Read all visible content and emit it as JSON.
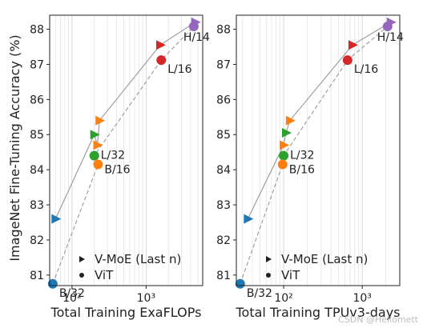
{
  "chart_data": {
    "type": "scatter",
    "ylabel": "ImageNet Fine-Tuning Accuracy (%)",
    "ylim": [
      80.7,
      88.4
    ],
    "yticks": [
      81,
      82,
      83,
      84,
      85,
      86,
      87,
      88
    ],
    "x_scale": "log",
    "legend": {
      "placement": "bottom-center",
      "entries": [
        {
          "label": "V-MoE (Last n)",
          "marker": "triangle-right"
        },
        {
          "label": "ViT",
          "marker": "circle"
        }
      ]
    },
    "colors": {
      "B/32": "#1f77b4",
      "B/16": "#ff7f0e",
      "L/32": "#2ca02c",
      "L/16": "#d62728",
      "H/14": "#9467bd",
      "line": "#999999"
    },
    "panels": [
      {
        "xlabel": "Total Training ExaFLOPs",
        "xlim": [
          50,
          5800
        ],
        "xticks": [
          {
            "value": 100,
            "label": "10²"
          },
          {
            "value": 1000,
            "label": "10³"
          }
        ],
        "vmoe": [
          {
            "x": 60,
            "y": 82.6,
            "color": "#1f77b4"
          },
          {
            "x": 200,
            "y": 85.0,
            "color": "#2ca02c"
          },
          {
            "x": 220,
            "y": 84.7,
            "color": "#ff7f0e"
          },
          {
            "x": 235,
            "y": 85.4,
            "color": "#ff7f0e"
          },
          {
            "x": 1550,
            "y": 87.55,
            "color": "#d62728"
          },
          {
            "x": 4600,
            "y": 88.2,
            "color": "#9467bd"
          }
        ],
        "vit": [
          {
            "name": "B/32",
            "x": 55,
            "y": 80.75,
            "color": "#1f77b4"
          },
          {
            "name": "L/32",
            "x": 200,
            "y": 84.4,
            "color": "#2ca02c"
          },
          {
            "name": "B/16",
            "x": 225,
            "y": 84.15,
            "color": "#ff7f0e"
          },
          {
            "name": "L/16",
            "x": 1600,
            "y": 87.12,
            "color": "#d62728"
          },
          {
            "name": "H/14",
            "x": 4400,
            "y": 88.08,
            "color": "#9467bd"
          }
        ]
      },
      {
        "xlabel": "Total Training TPUv3-days",
        "xlim": [
          25,
          3000
        ],
        "xticks": [
          {
            "value": 100,
            "label": "10²"
          },
          {
            "value": 1000,
            "label": "10³"
          }
        ],
        "vmoe": [
          {
            "x": 35,
            "y": 82.6,
            "color": "#1f77b4"
          },
          {
            "x": 100,
            "y": 84.7,
            "color": "#ff7f0e"
          },
          {
            "x": 107,
            "y": 85.05,
            "color": "#2ca02c"
          },
          {
            "x": 120,
            "y": 85.4,
            "color": "#ff7f0e"
          },
          {
            "x": 750,
            "y": 87.55,
            "color": "#d62728"
          },
          {
            "x": 2300,
            "y": 88.2,
            "color": "#9467bd"
          }
        ],
        "vit": [
          {
            "name": "B/32",
            "x": 28,
            "y": 80.75,
            "color": "#1f77b4"
          },
          {
            "name": "L/32",
            "x": 100,
            "y": 84.4,
            "color": "#2ca02c"
          },
          {
            "name": "B/16",
            "x": 97,
            "y": 84.15,
            "color": "#ff7f0e"
          },
          {
            "name": "L/16",
            "x": 650,
            "y": 87.12,
            "color": "#d62728"
          },
          {
            "name": "H/14",
            "x": 2100,
            "y": 88.08,
            "color": "#9467bd"
          }
        ]
      }
    ]
  },
  "watermark": "CSDN @Hellomett"
}
